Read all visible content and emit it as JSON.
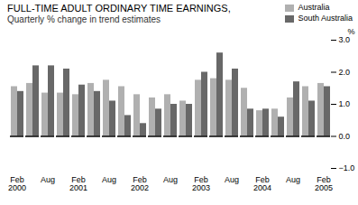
{
  "chart_data": {
    "type": "bar",
    "title": "FULL-TIME ADULT ORDINARY TIME EARNINGS,",
    "subtitle": "Quarterly % change in trend estimates",
    "categories": [
      "Feb\n2000",
      null,
      "Aug",
      null,
      "Feb\n2001",
      null,
      "Aug",
      null,
      "Feb\n2002",
      null,
      "Aug",
      null,
      "Feb\n2003",
      null,
      "Aug",
      null,
      "Feb\n2004",
      null,
      "Aug",
      null,
      "Feb\n2005"
    ],
    "series": [
      {
        "name": "Australia",
        "color": "#b0b0b0",
        "values": [
          1.55,
          1.65,
          1.35,
          1.35,
          1.3,
          1.65,
          1.75,
          1.55,
          1.3,
          1.2,
          1.3,
          1.1,
          1.75,
          1.8,
          1.75,
          1.5,
          0.8,
          0.85,
          1.2,
          1.55,
          1.65
        ]
      },
      {
        "name": "South Australia",
        "color": "#686868",
        "values": [
          1.4,
          2.2,
          2.2,
          2.1,
          1.6,
          1.4,
          1.1,
          0.65,
          0.4,
          0.85,
          1.0,
          1.0,
          2.0,
          2.6,
          2.1,
          0.85,
          0.85,
          0.6,
          1.7,
          1.1,
          1.55
        ]
      }
    ],
    "ylabel": "%",
    "ylim": [
      -1,
      3
    ],
    "yticks": [
      -1,
      0,
      1,
      2,
      3
    ],
    "grid": false,
    "legend": "upper right"
  }
}
